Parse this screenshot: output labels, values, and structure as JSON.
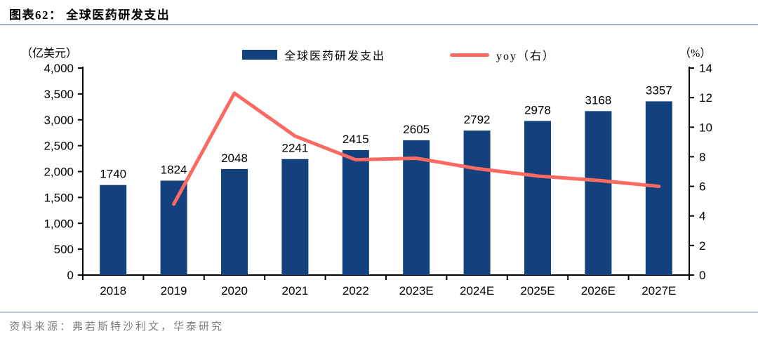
{
  "header": {
    "title": "图表62：  全球医药研发支出"
  },
  "legend": {
    "bar_label": "全球医药研发支出",
    "line_label": "yoy（右）"
  },
  "axes": {
    "left_unit": "（亿美元）",
    "right_unit": "（%）"
  },
  "footer": {
    "source": "资料来源：弗若斯特沙利文，华泰研究"
  },
  "colors": {
    "bar": "#12417e",
    "line": "#fb6a62",
    "axis": "#000000",
    "title_rule": "#9db6ce",
    "footer_rule": "#b9c9db",
    "source_text": "#7f7f7f"
  },
  "chart_data": {
    "type": "bar",
    "title": "全球医药研发支出",
    "categories": [
      "2018",
      "2019",
      "2020",
      "2021",
      "2022",
      "2023E",
      "2024E",
      "2025E",
      "2026E",
      "2027E"
    ],
    "series": [
      {
        "name": "全球医药研发支出",
        "type": "bar",
        "axis": "left",
        "values": [
          1740,
          1824,
          2048,
          2241,
          2415,
          2605,
          2792,
          2978,
          3168,
          3357
        ],
        "labels": [
          "1740",
          "1824",
          "2048",
          "2241",
          "2415",
          "2605",
          "2792",
          "2978",
          "3168",
          "3357"
        ]
      },
      {
        "name": "yoy（右）",
        "type": "line",
        "axis": "right",
        "values": [
          null,
          4.8,
          12.3,
          9.4,
          7.8,
          7.9,
          7.2,
          6.7,
          6.4,
          6.0
        ]
      }
    ],
    "left_axis": {
      "label": "（亿美元）",
      "min": 0,
      "max": 4000,
      "step": 500
    },
    "right_axis": {
      "label": "（%）",
      "min": 0,
      "max": 14,
      "step": 2
    },
    "legend_position": "top",
    "grid": false
  }
}
